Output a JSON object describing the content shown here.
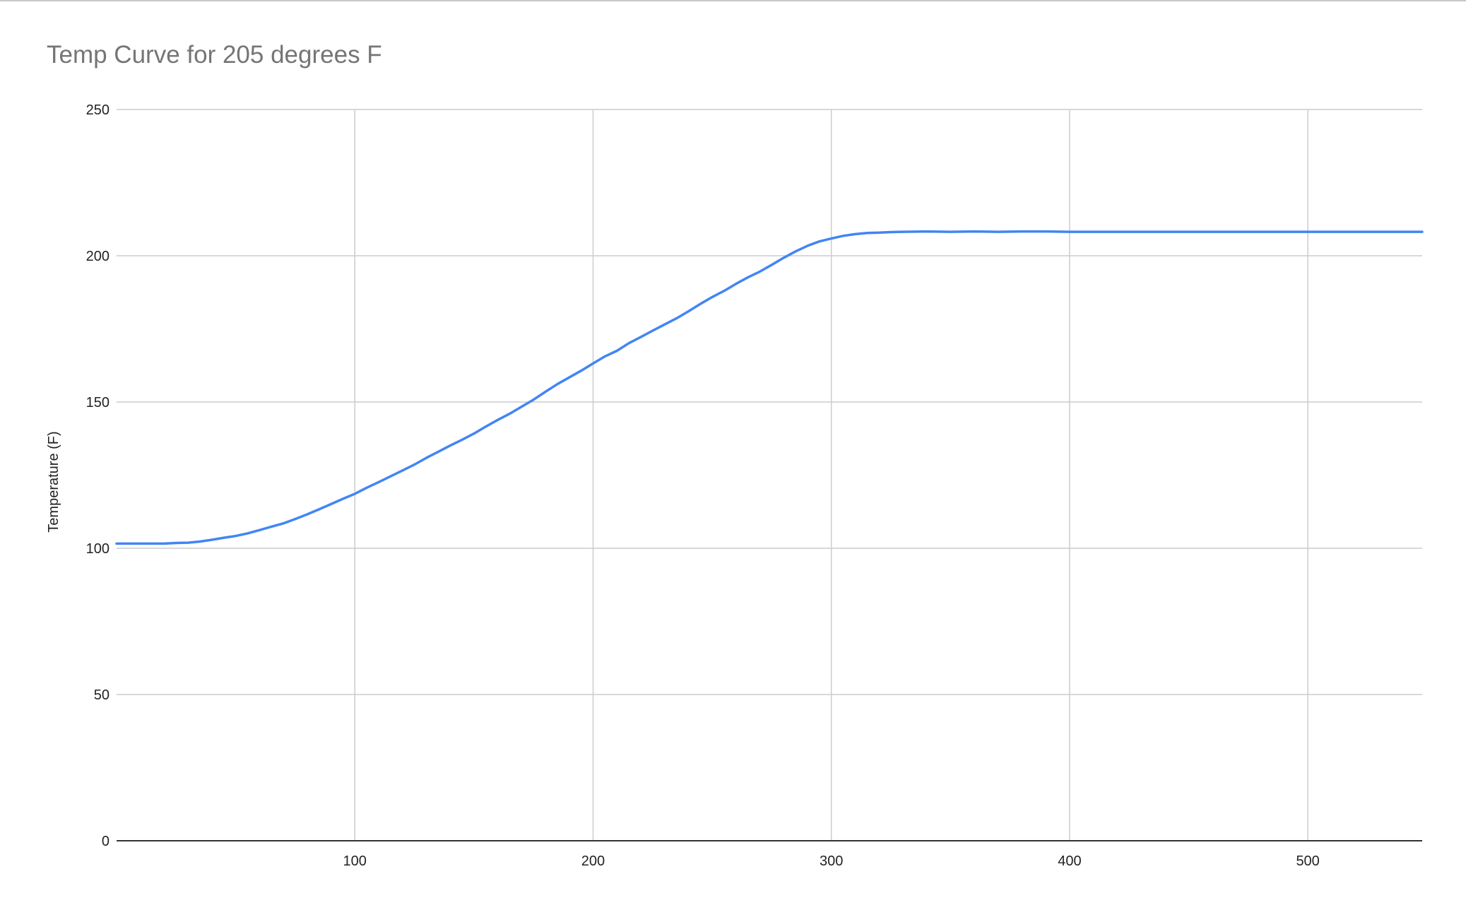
{
  "chart_data": {
    "type": "line",
    "title": "Temp Curve for 205 degrees F",
    "xlabel": "",
    "ylabel": "Temperature (F)",
    "xlim": [
      0,
      548
    ],
    "ylim": [
      0,
      250
    ],
    "x_ticks": [
      100,
      200,
      300,
      400,
      500
    ],
    "y_ticks": [
      0,
      50,
      100,
      150,
      200,
      250
    ],
    "grid": true,
    "legend": "none",
    "series": [
      {
        "color": "#4285f4",
        "points": [
          [
            0,
            101.6
          ],
          [
            10,
            101.6
          ],
          [
            20,
            101.6
          ],
          [
            25,
            101.8
          ],
          [
            30,
            101.9
          ],
          [
            35,
            102.3
          ],
          [
            40,
            102.9
          ],
          [
            45,
            103.6
          ],
          [
            50,
            104.2
          ],
          [
            55,
            105.1
          ],
          [
            60,
            106.2
          ],
          [
            65,
            107.4
          ],
          [
            70,
            108.5
          ],
          [
            75,
            110.0
          ],
          [
            80,
            111.6
          ],
          [
            85,
            113.3
          ],
          [
            90,
            115.1
          ],
          [
            95,
            116.9
          ],
          [
            100,
            118.6
          ],
          [
            105,
            120.7
          ],
          [
            110,
            122.6
          ],
          [
            115,
            124.6
          ],
          [
            120,
            126.6
          ],
          [
            125,
            128.6
          ],
          [
            130,
            130.9
          ],
          [
            135,
            133.0
          ],
          [
            140,
            135.1
          ],
          [
            145,
            137.1
          ],
          [
            150,
            139.2
          ],
          [
            155,
            141.6
          ],
          [
            160,
            143.9
          ],
          [
            165,
            146.0
          ],
          [
            170,
            148.4
          ],
          [
            175,
            150.8
          ],
          [
            180,
            153.5
          ],
          [
            185,
            156.1
          ],
          [
            190,
            158.4
          ],
          [
            195,
            160.7
          ],
          [
            200,
            163.2
          ],
          [
            205,
            165.6
          ],
          [
            210,
            167.5
          ],
          [
            215,
            170.1
          ],
          [
            220,
            172.2
          ],
          [
            225,
            174.4
          ],
          [
            230,
            176.5
          ],
          [
            235,
            178.6
          ],
          [
            240,
            181.0
          ],
          [
            245,
            183.5
          ],
          [
            250,
            185.9
          ],
          [
            255,
            188.0
          ],
          [
            260,
            190.4
          ],
          [
            265,
            192.6
          ],
          [
            270,
            194.6
          ],
          [
            275,
            196.9
          ],
          [
            280,
            199.3
          ],
          [
            285,
            201.5
          ],
          [
            290,
            203.4
          ],
          [
            295,
            204.9
          ],
          [
            300,
            205.9
          ],
          [
            305,
            206.8
          ],
          [
            310,
            207.4
          ],
          [
            315,
            207.8
          ],
          [
            320,
            207.9
          ],
          [
            325,
            208.1
          ],
          [
            330,
            208.2
          ],
          [
            340,
            208.3
          ],
          [
            350,
            208.2
          ],
          [
            360,
            208.3
          ],
          [
            370,
            208.2
          ],
          [
            380,
            208.3
          ],
          [
            390,
            208.3
          ],
          [
            400,
            208.2
          ],
          [
            420,
            208.2
          ],
          [
            440,
            208.2
          ],
          [
            460,
            208.2
          ],
          [
            480,
            208.2
          ],
          [
            500,
            208.2
          ],
          [
            520,
            208.2
          ],
          [
            548,
            208.2
          ]
        ]
      }
    ]
  }
}
